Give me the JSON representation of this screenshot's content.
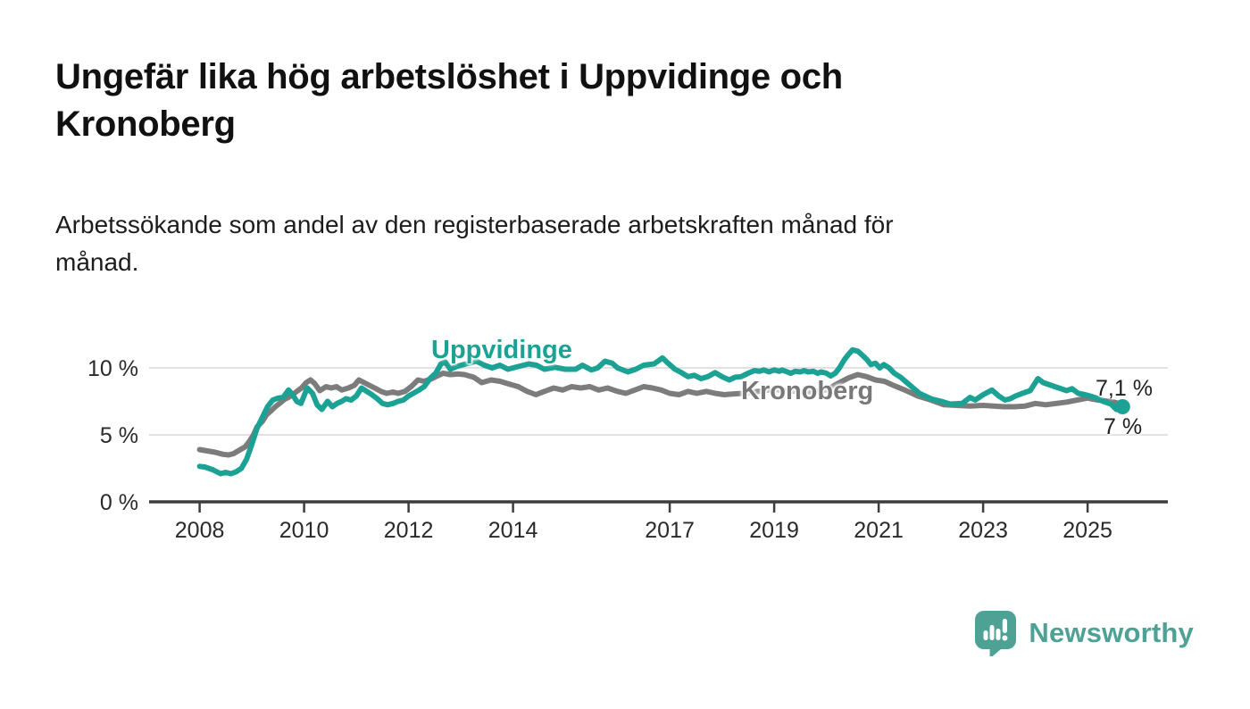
{
  "title": {
    "line1": "Ungefär lika hög arbetslöshet i Uppvidinge och",
    "line2": "Kronoberg"
  },
  "subtitle": {
    "line1": "Arbetssökande som andel av den registerbaserade arbetskraften månad för",
    "line2": "månad."
  },
  "branding": {
    "name": "Newsworthy",
    "color": "#4da295"
  },
  "chart_data": {
    "type": "line",
    "title": "Ungefär lika hög arbetslöshet i Uppvidinge och Kronoberg",
    "subtitle": "Arbetssökande som andel av den registerbaserade arbetskraften månad för månad.",
    "unit": "%",
    "xlabel": "",
    "ylabel": "",
    "grid": "horizontal",
    "x_range": [
      2008.0,
      2025.67
    ],
    "ylim": [
      0,
      12.8
    ],
    "x_ticks": [
      2008,
      2010,
      2012,
      2014,
      2017,
      2019,
      2021,
      2023,
      2025
    ],
    "y_ticks": [
      {
        "value": 0,
        "label": "0 %"
      },
      {
        "value": 5,
        "label": "5 %"
      },
      {
        "value": 10,
        "label": "10 %"
      }
    ],
    "colors": {
      "axis": "#3d3d3d",
      "grid": "#d8d8d8",
      "tick_text": "#2a2a2a"
    },
    "series": [
      {
        "name": "Uppvidinge",
        "color": "#1ba294",
        "end_label": "7,1 %",
        "end_value": 7.1,
        "end_dot": true,
        "points": [
          [
            2008.0,
            2.65
          ],
          [
            2008.1,
            2.6
          ],
          [
            2008.25,
            2.4
          ],
          [
            2008.4,
            2.1
          ],
          [
            2008.5,
            2.2
          ],
          [
            2008.6,
            2.1
          ],
          [
            2008.7,
            2.25
          ],
          [
            2008.8,
            2.5
          ],
          [
            2008.9,
            3.2
          ],
          [
            2009.0,
            4.3
          ],
          [
            2009.1,
            5.5
          ],
          [
            2009.2,
            6.3
          ],
          [
            2009.3,
            7.1
          ],
          [
            2009.4,
            7.6
          ],
          [
            2009.5,
            7.75
          ],
          [
            2009.6,
            7.8
          ],
          [
            2009.7,
            8.35
          ],
          [
            2009.78,
            8.0
          ],
          [
            2009.86,
            7.5
          ],
          [
            2009.94,
            7.35
          ],
          [
            2010.06,
            8.5
          ],
          [
            2010.16,
            8.1
          ],
          [
            2010.25,
            7.25
          ],
          [
            2010.34,
            6.9
          ],
          [
            2010.45,
            7.5
          ],
          [
            2010.54,
            7.1
          ],
          [
            2010.63,
            7.35
          ],
          [
            2010.72,
            7.5
          ],
          [
            2010.8,
            7.7
          ],
          [
            2010.9,
            7.6
          ],
          [
            2011.0,
            7.9
          ],
          [
            2011.1,
            8.5
          ],
          [
            2011.2,
            8.25
          ],
          [
            2011.3,
            8.0
          ],
          [
            2011.4,
            7.7
          ],
          [
            2011.5,
            7.35
          ],
          [
            2011.6,
            7.25
          ],
          [
            2011.7,
            7.35
          ],
          [
            2011.8,
            7.5
          ],
          [
            2011.9,
            7.6
          ],
          [
            2012.0,
            7.9
          ],
          [
            2012.2,
            8.35
          ],
          [
            2012.3,
            8.6
          ],
          [
            2012.42,
            9.25
          ],
          [
            2012.52,
            9.6
          ],
          [
            2012.62,
            10.3
          ],
          [
            2012.7,
            10.45
          ],
          [
            2012.8,
            9.9
          ],
          [
            2012.92,
            10.1
          ],
          [
            2013.1,
            10.3
          ],
          [
            2013.3,
            10.5
          ],
          [
            2013.45,
            10.2
          ],
          [
            2013.6,
            10.0
          ],
          [
            2013.75,
            10.2
          ],
          [
            2013.9,
            9.9
          ],
          [
            2014.1,
            10.1
          ],
          [
            2014.3,
            10.3
          ],
          [
            2014.45,
            10.2
          ],
          [
            2014.6,
            9.9
          ],
          [
            2014.8,
            10.05
          ],
          [
            2015.0,
            9.9
          ],
          [
            2015.2,
            9.9
          ],
          [
            2015.33,
            10.2
          ],
          [
            2015.5,
            9.85
          ],
          [
            2015.62,
            10.0
          ],
          [
            2015.76,
            10.5
          ],
          [
            2015.9,
            10.35
          ],
          [
            2016.0,
            10.0
          ],
          [
            2016.2,
            9.7
          ],
          [
            2016.35,
            9.9
          ],
          [
            2016.5,
            10.2
          ],
          [
            2016.7,
            10.3
          ],
          [
            2016.86,
            10.75
          ],
          [
            2016.97,
            10.35
          ],
          [
            2017.1,
            9.9
          ],
          [
            2017.2,
            9.7
          ],
          [
            2017.35,
            9.35
          ],
          [
            2017.47,
            9.45
          ],
          [
            2017.6,
            9.2
          ],
          [
            2017.73,
            9.35
          ],
          [
            2017.87,
            9.65
          ],
          [
            2018.0,
            9.35
          ],
          [
            2018.14,
            9.1
          ],
          [
            2018.25,
            9.3
          ],
          [
            2018.37,
            9.35
          ],
          [
            2018.5,
            9.6
          ],
          [
            2018.62,
            9.8
          ],
          [
            2018.72,
            9.75
          ],
          [
            2018.8,
            9.85
          ],
          [
            2018.9,
            9.7
          ],
          [
            2019.0,
            9.85
          ],
          [
            2019.1,
            9.75
          ],
          [
            2019.15,
            9.85
          ],
          [
            2019.25,
            9.7
          ],
          [
            2019.32,
            9.6
          ],
          [
            2019.4,
            9.75
          ],
          [
            2019.5,
            9.7
          ],
          [
            2019.57,
            9.8
          ],
          [
            2019.65,
            9.7
          ],
          [
            2019.75,
            9.75
          ],
          [
            2019.83,
            9.6
          ],
          [
            2019.9,
            9.7
          ],
          [
            2020.0,
            9.6
          ],
          [
            2020.08,
            9.4
          ],
          [
            2020.17,
            9.6
          ],
          [
            2020.25,
            10.0
          ],
          [
            2020.34,
            10.6
          ],
          [
            2020.42,
            11.0
          ],
          [
            2020.5,
            11.35
          ],
          [
            2020.6,
            11.25
          ],
          [
            2020.7,
            10.9
          ],
          [
            2020.78,
            10.6
          ],
          [
            2020.85,
            10.25
          ],
          [
            2020.94,
            10.35
          ],
          [
            2021.02,
            10.0
          ],
          [
            2021.1,
            10.25
          ],
          [
            2021.2,
            10.0
          ],
          [
            2021.3,
            9.6
          ],
          [
            2021.42,
            9.3
          ],
          [
            2021.6,
            8.7
          ],
          [
            2021.78,
            8.1
          ],
          [
            2022.0,
            7.7
          ],
          [
            2022.2,
            7.5
          ],
          [
            2022.37,
            7.3
          ],
          [
            2022.6,
            7.35
          ],
          [
            2022.75,
            7.8
          ],
          [
            2022.85,
            7.6
          ],
          [
            2023.0,
            8.0
          ],
          [
            2023.17,
            8.35
          ],
          [
            2023.3,
            7.9
          ],
          [
            2023.42,
            7.6
          ],
          [
            2023.52,
            7.7
          ],
          [
            2023.62,
            7.9
          ],
          [
            2023.75,
            8.1
          ],
          [
            2023.9,
            8.3
          ],
          [
            2024.05,
            9.2
          ],
          [
            2024.15,
            8.9
          ],
          [
            2024.3,
            8.7
          ],
          [
            2024.45,
            8.5
          ],
          [
            2024.6,
            8.3
          ],
          [
            2024.7,
            8.45
          ],
          [
            2024.82,
            8.1
          ],
          [
            2024.95,
            8.0
          ],
          [
            2025.05,
            7.9
          ],
          [
            2025.17,
            7.75
          ],
          [
            2025.3,
            7.5
          ],
          [
            2025.45,
            7.3
          ],
          [
            2025.55,
            6.9
          ],
          [
            2025.67,
            7.1
          ]
        ]
      },
      {
        "name": "Kronoberg",
        "color": "#7c7c7c",
        "end_label": "7 %",
        "end_value": 7.0,
        "end_dot": false,
        "points": [
          [
            2008.0,
            3.9
          ],
          [
            2008.15,
            3.8
          ],
          [
            2008.3,
            3.7
          ],
          [
            2008.45,
            3.55
          ],
          [
            2008.55,
            3.5
          ],
          [
            2008.65,
            3.6
          ],
          [
            2008.78,
            3.9
          ],
          [
            2008.87,
            4.1
          ],
          [
            2008.95,
            4.5
          ],
          [
            2009.03,
            5.0
          ],
          [
            2009.1,
            5.6
          ],
          [
            2009.2,
            6.0
          ],
          [
            2009.28,
            6.5
          ],
          [
            2009.37,
            6.8
          ],
          [
            2009.45,
            7.1
          ],
          [
            2009.53,
            7.35
          ],
          [
            2009.62,
            7.65
          ],
          [
            2009.7,
            7.8
          ],
          [
            2009.78,
            8.0
          ],
          [
            2009.86,
            8.25
          ],
          [
            2009.95,
            8.5
          ],
          [
            2010.04,
            8.9
          ],
          [
            2010.12,
            9.1
          ],
          [
            2010.2,
            8.85
          ],
          [
            2010.3,
            8.3
          ],
          [
            2010.42,
            8.6
          ],
          [
            2010.52,
            8.5
          ],
          [
            2010.62,
            8.6
          ],
          [
            2010.72,
            8.35
          ],
          [
            2010.85,
            8.5
          ],
          [
            2010.96,
            8.7
          ],
          [
            2011.05,
            9.1
          ],
          [
            2011.15,
            8.9
          ],
          [
            2011.25,
            8.7
          ],
          [
            2011.35,
            8.5
          ],
          [
            2011.47,
            8.25
          ],
          [
            2011.58,
            8.1
          ],
          [
            2011.7,
            8.2
          ],
          [
            2011.8,
            8.1
          ],
          [
            2011.93,
            8.25
          ],
          [
            2012.05,
            8.6
          ],
          [
            2012.18,
            9.1
          ],
          [
            2012.3,
            9.0
          ],
          [
            2012.45,
            9.2
          ],
          [
            2012.55,
            9.4
          ],
          [
            2012.66,
            9.6
          ],
          [
            2012.8,
            9.5
          ],
          [
            2012.95,
            9.55
          ],
          [
            2013.07,
            9.5
          ],
          [
            2013.25,
            9.3
          ],
          [
            2013.4,
            8.9
          ],
          [
            2013.58,
            9.1
          ],
          [
            2013.75,
            9.0
          ],
          [
            2013.92,
            8.8
          ],
          [
            2014.1,
            8.6
          ],
          [
            2014.27,
            8.25
          ],
          [
            2014.44,
            8.0
          ],
          [
            2014.6,
            8.25
          ],
          [
            2014.78,
            8.5
          ],
          [
            2014.95,
            8.35
          ],
          [
            2015.12,
            8.6
          ],
          [
            2015.3,
            8.5
          ],
          [
            2015.47,
            8.6
          ],
          [
            2015.64,
            8.35
          ],
          [
            2015.81,
            8.5
          ],
          [
            2016.0,
            8.25
          ],
          [
            2016.16,
            8.1
          ],
          [
            2016.33,
            8.35
          ],
          [
            2016.5,
            8.6
          ],
          [
            2016.67,
            8.5
          ],
          [
            2016.84,
            8.35
          ],
          [
            2017.0,
            8.1
          ],
          [
            2017.18,
            8.0
          ],
          [
            2017.35,
            8.25
          ],
          [
            2017.52,
            8.1
          ],
          [
            2017.7,
            8.25
          ],
          [
            2017.87,
            8.1
          ],
          [
            2018.04,
            8.0
          ],
          [
            2018.2,
            8.05
          ],
          [
            2018.4,
            8.1
          ],
          [
            2018.6,
            8.2
          ],
          [
            2018.8,
            8.3
          ],
          [
            2019.0,
            8.4
          ],
          [
            2019.2,
            8.3
          ],
          [
            2019.4,
            8.25
          ],
          [
            2019.6,
            8.2
          ],
          [
            2019.8,
            8.25
          ],
          [
            2020.0,
            8.35
          ],
          [
            2020.2,
            8.8
          ],
          [
            2020.42,
            9.25
          ],
          [
            2020.6,
            9.5
          ],
          [
            2020.77,
            9.35
          ],
          [
            2020.94,
            9.1
          ],
          [
            2021.11,
            9.0
          ],
          [
            2021.28,
            8.7
          ],
          [
            2021.5,
            8.35
          ],
          [
            2021.75,
            7.9
          ],
          [
            2022.0,
            7.6
          ],
          [
            2022.25,
            7.25
          ],
          [
            2022.5,
            7.2
          ],
          [
            2022.75,
            7.15
          ],
          [
            2023.0,
            7.2
          ],
          [
            2023.2,
            7.15
          ],
          [
            2023.4,
            7.1
          ],
          [
            2023.6,
            7.1
          ],
          [
            2023.8,
            7.15
          ],
          [
            2024.0,
            7.35
          ],
          [
            2024.2,
            7.25
          ],
          [
            2024.4,
            7.35
          ],
          [
            2024.6,
            7.45
          ],
          [
            2024.8,
            7.6
          ],
          [
            2025.0,
            7.75
          ],
          [
            2025.2,
            7.6
          ],
          [
            2025.4,
            7.5
          ],
          [
            2025.55,
            7.4
          ],
          [
            2025.67,
            7.0
          ]
        ]
      }
    ]
  }
}
